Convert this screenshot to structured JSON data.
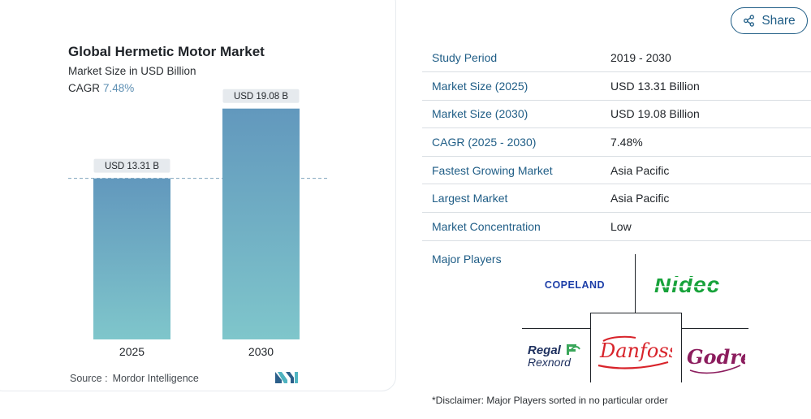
{
  "chart_data": {
    "type": "bar",
    "title": "Global Hermetic Motor Market",
    "subtitle": "Market Size in USD Billion",
    "cagr_label": "CAGR",
    "cagr_value": "7.48%",
    "categories": [
      "2025",
      "2030"
    ],
    "values": [
      13.31,
      19.08
    ],
    "value_labels": [
      "USD 13.31 B",
      "USD 19.08 B"
    ],
    "ylim": [
      0,
      20
    ],
    "grid": false,
    "reference_line": 13.31,
    "bar_gradient": [
      "#6298bd",
      "#7fc6cb"
    ]
  },
  "source": {
    "label": "Source :",
    "name": "Mordor Intelligence"
  },
  "share_button": {
    "label": "Share",
    "icon": "share-icon",
    "color": "#1f5d86"
  },
  "stats": [
    {
      "key": "Study Period",
      "value": "2019 - 2030"
    },
    {
      "key": "Market Size (2025)",
      "value": "USD 13.31 Billion"
    },
    {
      "key": "Market Size (2030)",
      "value": "USD 19.08 Billion"
    },
    {
      "key": "CAGR (2025 - 2030)",
      "value": "7.48%"
    },
    {
      "key": "Fastest Growing Market",
      "value": "Asia Pacific"
    },
    {
      "key": "Largest Market",
      "value": "Asia Pacific"
    },
    {
      "key": "Market Concentration",
      "value": "Low"
    }
  ],
  "major_players": {
    "label": "Major Players",
    "logos": [
      "COPELAND",
      "Nidec",
      "Regal Rexnord",
      "Danfoss",
      "Godrej"
    ]
  },
  "disclaimer": "*Disclaimer: Major Players sorted in no particular order"
}
